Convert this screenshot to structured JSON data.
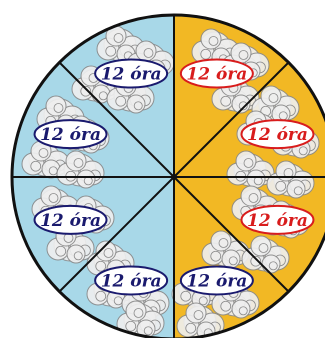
{
  "colors": {
    "left_half": "#a8d8e8",
    "right_half": "#f2b824",
    "spoke": "#111111",
    "rim": "#111111",
    "cloud_fill": "#eeeeee",
    "cloud_stroke": "#8a8a8a",
    "label_fill": "#ffffff",
    "label_blue": "#1a1a6e",
    "label_red": "#d81c1c"
  },
  "sectors": [
    {
      "label": "12 óra",
      "color": "red"
    },
    {
      "label": "12 óra",
      "color": "red"
    },
    {
      "label": "12 óra",
      "color": "red"
    },
    {
      "label": "12 óra",
      "color": "blue"
    },
    {
      "label": "12 óra",
      "color": "blue"
    },
    {
      "label": "12 óra",
      "color": "blue"
    },
    {
      "label": "12 óra",
      "color": "blue"
    },
    {
      "label": "12 óra",
      "color": "blue"
    }
  ]
}
